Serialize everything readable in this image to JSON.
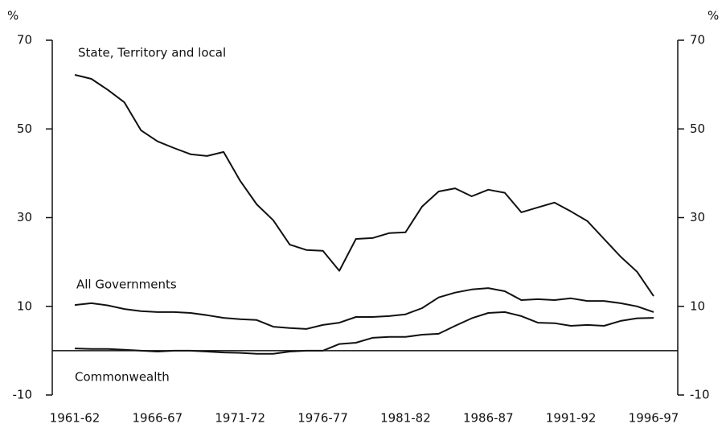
{
  "chart_data": {
    "type": "line",
    "y_label": "%",
    "y2_label": "%",
    "annotations": [
      "State, Territory and local",
      "All Governments",
      "Commonwealth"
    ],
    "categories": [
      "1961-62",
      null,
      null,
      null,
      null,
      "1966-67",
      null,
      null,
      null,
      null,
      "1971-72",
      null,
      null,
      null,
      null,
      "1976-77",
      null,
      null,
      null,
      null,
      "1981-82",
      null,
      null,
      null,
      null,
      "1986-87",
      null,
      null,
      null,
      null,
      "1991-92",
      null,
      null,
      null,
      null,
      "1996-97"
    ],
    "series": [
      {
        "name": "State, Territory and local",
        "color": "#111111",
        "values": [
          62.2,
          61.3,
          58.8,
          56,
          49.7,
          47.2,
          45.7,
          44.3,
          43.9,
          44.8,
          38.3,
          33,
          29.4,
          23.9,
          22.7,
          22.5,
          18,
          25.2,
          25.4,
          26.5,
          26.7,
          32.5,
          35.9,
          36.6,
          34.8,
          36.3,
          35.6,
          31.2,
          32.3,
          33.4,
          31.4,
          29.2,
          25.2,
          21.2,
          17.8,
          12.3
        ]
      },
      {
        "name": "All Governments",
        "color": "#111111",
        "values": [
          10.3,
          10.7,
          10.2,
          9.4,
          8.9,
          8.7,
          8.7,
          8.5,
          8,
          7.4,
          7.1,
          6.9,
          5.4,
          5.1,
          4.9,
          5.8,
          6.3,
          7.6,
          7.6,
          7.8,
          8.2,
          9.6,
          12,
          13.1,
          13.8,
          14.1,
          13.4,
          11.4,
          11.6,
          11.4,
          11.8,
          11.2,
          11.2,
          10.7,
          10,
          8.7
        ]
      },
      {
        "name": "Commonwealth",
        "color": "#111111",
        "values": [
          0.5,
          0.4,
          0.4,
          0.2,
          0,
          -0.2,
          0,
          0,
          -0.2,
          -0.4,
          -0.5,
          -0.7,
          -0.7,
          -0.2,
          0,
          0,
          1.5,
          1.8,
          2.9,
          3.1,
          3.1,
          3.6,
          3.8,
          5.6,
          7.3,
          8.5,
          8.7,
          7.8,
          6.3,
          6.2,
          5.6,
          5.8,
          5.6,
          6.7,
          7.3,
          7.4
        ]
      }
    ],
    "ylim": [
      -10,
      70
    ],
    "yticks": [
      -10,
      10,
      30,
      50,
      70
    ],
    "y2lim": [
      -10,
      70
    ],
    "y2ticks": [
      -10,
      10,
      30,
      50,
      70
    ]
  }
}
